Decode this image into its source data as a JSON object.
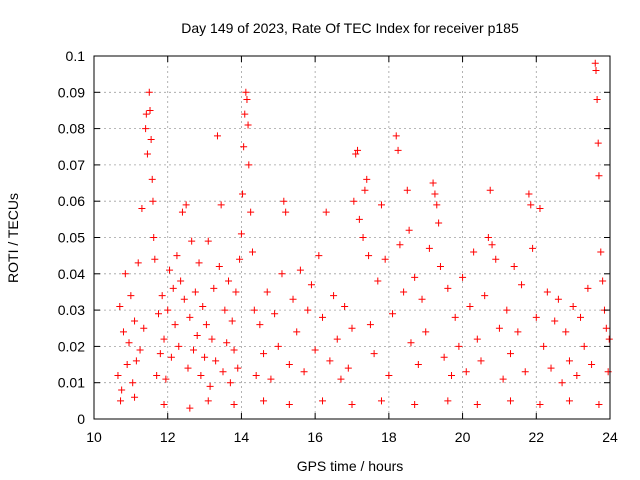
{
  "chart_data": {
    "type": "scatter",
    "title": "Day 149 of 2023, Rate Of TEC Index for receiver p185",
    "xlabel": "GPS time / hours",
    "ylabel": "ROTI / TECUs",
    "xlim": [
      10,
      24
    ],
    "ylim": [
      0,
      0.1
    ],
    "xticks": [
      10,
      12,
      14,
      16,
      18,
      20,
      22,
      24
    ],
    "xtick_labels": [
      "10",
      "12",
      "14",
      "16",
      "18",
      "20",
      "22",
      "24"
    ],
    "yticks": [
      0,
      0.01,
      0.02,
      0.03,
      0.04,
      0.05,
      0.06,
      0.07,
      0.08,
      0.09,
      0.1
    ],
    "ytick_labels": [
      "0",
      "0.01",
      "0.02",
      "0.03",
      "0.04",
      "0.05",
      "0.06",
      "0.07",
      "0.08",
      "0.09",
      "0.1"
    ],
    "grid": true,
    "marker": "+",
    "color": "#ff0000",
    "series": [
      {
        "name": "ROTI",
        "points": [
          [
            10.65,
            0.012
          ],
          [
            10.7,
            0.031
          ],
          [
            10.75,
            0.008
          ],
          [
            10.8,
            0.024
          ],
          [
            10.85,
            0.04
          ],
          [
            10.9,
            0.015
          ],
          [
            10.95,
            0.021
          ],
          [
            11.0,
            0.034
          ],
          [
            11.05,
            0.01
          ],
          [
            11.1,
            0.027
          ],
          [
            11.15,
            0.016
          ],
          [
            11.2,
            0.043
          ],
          [
            11.25,
            0.019
          ],
          [
            11.3,
            0.058
          ],
          [
            11.35,
            0.025
          ],
          [
            11.4,
            0.08
          ],
          [
            11.42,
            0.084
          ],
          [
            11.45,
            0.073
          ],
          [
            11.5,
            0.09
          ],
          [
            11.52,
            0.085
          ],
          [
            11.55,
            0.077
          ],
          [
            11.58,
            0.066
          ],
          [
            11.6,
            0.06
          ],
          [
            11.62,
            0.05
          ],
          [
            11.65,
            0.044
          ],
          [
            11.7,
            0.012
          ],
          [
            11.75,
            0.029
          ],
          [
            11.8,
            0.018
          ],
          [
            11.85,
            0.034
          ],
          [
            11.9,
            0.022
          ],
          [
            11.95,
            0.011
          ],
          [
            12.0,
            0.03
          ],
          [
            12.05,
            0.041
          ],
          [
            12.1,
            0.017
          ],
          [
            12.15,
            0.036
          ],
          [
            12.2,
            0.026
          ],
          [
            12.25,
            0.045
          ],
          [
            12.3,
            0.02
          ],
          [
            12.35,
            0.038
          ],
          [
            12.4,
            0.057
          ],
          [
            12.45,
            0.033
          ],
          [
            12.5,
            0.059
          ],
          [
            12.55,
            0.014
          ],
          [
            12.6,
            0.028
          ],
          [
            12.65,
            0.049
          ],
          [
            12.7,
            0.019
          ],
          [
            12.75,
            0.035
          ],
          [
            12.8,
            0.023
          ],
          [
            12.85,
            0.043
          ],
          [
            12.9,
            0.012
          ],
          [
            12.95,
            0.031
          ],
          [
            13.0,
            0.017
          ],
          [
            13.05,
            0.026
          ],
          [
            13.1,
            0.049
          ],
          [
            13.15,
            0.009
          ],
          [
            13.2,
            0.022
          ],
          [
            13.25,
            0.036
          ],
          [
            13.3,
            0.016
          ],
          [
            13.35,
            0.078
          ],
          [
            13.4,
            0.042
          ],
          [
            13.45,
            0.059
          ],
          [
            13.5,
            0.013
          ],
          [
            13.55,
            0.03
          ],
          [
            13.6,
            0.021
          ],
          [
            13.65,
            0.038
          ],
          [
            13.7,
            0.01
          ],
          [
            13.75,
            0.027
          ],
          [
            13.8,
            0.019
          ],
          [
            13.85,
            0.035
          ],
          [
            13.9,
            0.014
          ],
          [
            13.95,
            0.044
          ],
          [
            14.0,
            0.051
          ],
          [
            14.03,
            0.062
          ],
          [
            14.06,
            0.075
          ],
          [
            14.09,
            0.084
          ],
          [
            14.12,
            0.09
          ],
          [
            14.15,
            0.088
          ],
          [
            14.18,
            0.081
          ],
          [
            14.2,
            0.07
          ],
          [
            14.25,
            0.057
          ],
          [
            14.3,
            0.046
          ],
          [
            14.35,
            0.03
          ],
          [
            14.4,
            0.012
          ],
          [
            14.5,
            0.026
          ],
          [
            14.6,
            0.018
          ],
          [
            14.7,
            0.035
          ],
          [
            14.8,
            0.011
          ],
          [
            14.9,
            0.029
          ],
          [
            15.0,
            0.02
          ],
          [
            15.1,
            0.04
          ],
          [
            15.15,
            0.06
          ],
          [
            15.2,
            0.057
          ],
          [
            15.3,
            0.015
          ],
          [
            15.4,
            0.033
          ],
          [
            15.5,
            0.024
          ],
          [
            15.6,
            0.041
          ],
          [
            15.7,
            0.013
          ],
          [
            15.8,
            0.03
          ],
          [
            15.9,
            0.037
          ],
          [
            16.0,
            0.019
          ],
          [
            16.1,
            0.045
          ],
          [
            16.2,
            0.028
          ],
          [
            16.3,
            0.057
          ],
          [
            16.4,
            0.016
          ],
          [
            16.5,
            0.034
          ],
          [
            16.6,
            0.022
          ],
          [
            16.7,
            0.011
          ],
          [
            16.8,
            0.031
          ],
          [
            16.9,
            0.014
          ],
          [
            17.0,
            0.025
          ],
          [
            17.05,
            0.06
          ],
          [
            17.1,
            0.073
          ],
          [
            17.15,
            0.074
          ],
          [
            17.2,
            0.055
          ],
          [
            17.3,
            0.05
          ],
          [
            17.35,
            0.063
          ],
          [
            17.4,
            0.066
          ],
          [
            17.45,
            0.045
          ],
          [
            17.5,
            0.026
          ],
          [
            17.6,
            0.018
          ],
          [
            17.7,
            0.038
          ],
          [
            17.8,
            0.059
          ],
          [
            17.9,
            0.044
          ],
          [
            18.0,
            0.012
          ],
          [
            18.1,
            0.029
          ],
          [
            18.2,
            0.078
          ],
          [
            18.25,
            0.074
          ],
          [
            18.3,
            0.048
          ],
          [
            18.4,
            0.035
          ],
          [
            18.5,
            0.063
          ],
          [
            18.55,
            0.052
          ],
          [
            18.6,
            0.021
          ],
          [
            18.7,
            0.039
          ],
          [
            18.8,
            0.015
          ],
          [
            18.9,
            0.033
          ],
          [
            19.0,
            0.024
          ],
          [
            19.1,
            0.047
          ],
          [
            19.2,
            0.065
          ],
          [
            19.25,
            0.062
          ],
          [
            19.3,
            0.059
          ],
          [
            19.35,
            0.054
          ],
          [
            19.4,
            0.042
          ],
          [
            19.5,
            0.017
          ],
          [
            19.6,
            0.036
          ],
          [
            19.7,
            0.012
          ],
          [
            19.8,
            0.028
          ],
          [
            19.9,
            0.02
          ],
          [
            20.0,
            0.039
          ],
          [
            20.1,
            0.013
          ],
          [
            20.2,
            0.031
          ],
          [
            20.3,
            0.046
          ],
          [
            20.4,
            0.022
          ],
          [
            20.5,
            0.016
          ],
          [
            20.6,
            0.034
          ],
          [
            20.7,
            0.05
          ],
          [
            20.75,
            0.063
          ],
          [
            20.8,
            0.048
          ],
          [
            20.9,
            0.044
          ],
          [
            21.0,
            0.025
          ],
          [
            21.1,
            0.011
          ],
          [
            21.2,
            0.03
          ],
          [
            21.3,
            0.018
          ],
          [
            21.4,
            0.042
          ],
          [
            21.5,
            0.024
          ],
          [
            21.6,
            0.037
          ],
          [
            21.7,
            0.013
          ],
          [
            21.8,
            0.062
          ],
          [
            21.85,
            0.059
          ],
          [
            21.9,
            0.047
          ],
          [
            22.0,
            0.028
          ],
          [
            22.1,
            0.058
          ],
          [
            22.2,
            0.02
          ],
          [
            22.3,
            0.035
          ],
          [
            22.4,
            0.014
          ],
          [
            22.5,
            0.027
          ],
          [
            22.6,
            0.033
          ],
          [
            22.7,
            0.01
          ],
          [
            22.8,
            0.024
          ],
          [
            22.9,
            0.016
          ],
          [
            23.0,
            0.031
          ],
          [
            23.1,
            0.012
          ],
          [
            23.2,
            0.028
          ],
          [
            23.3,
            0.02
          ],
          [
            23.4,
            0.036
          ],
          [
            23.5,
            0.015
          ],
          [
            23.6,
            0.098
          ],
          [
            23.62,
            0.096
          ],
          [
            23.65,
            0.088
          ],
          [
            23.68,
            0.076
          ],
          [
            23.7,
            0.067
          ],
          [
            23.75,
            0.046
          ],
          [
            23.8,
            0.038
          ],
          [
            23.85,
            0.03
          ],
          [
            23.9,
            0.025
          ],
          [
            23.95,
            0.013
          ],
          [
            23.98,
            0.022
          ],
          [
            10.72,
            0.005
          ],
          [
            11.1,
            0.006
          ],
          [
            11.9,
            0.004
          ],
          [
            12.6,
            0.003
          ],
          [
            13.1,
            0.005
          ],
          [
            13.8,
            0.004
          ],
          [
            14.6,
            0.005
          ],
          [
            15.3,
            0.004
          ],
          [
            16.2,
            0.005
          ],
          [
            17.0,
            0.004
          ],
          [
            17.8,
            0.005
          ],
          [
            18.7,
            0.004
          ],
          [
            19.6,
            0.005
          ],
          [
            20.4,
            0.004
          ],
          [
            21.3,
            0.005
          ],
          [
            22.1,
            0.004
          ],
          [
            22.9,
            0.005
          ],
          [
            23.7,
            0.004
          ]
        ]
      }
    ]
  }
}
